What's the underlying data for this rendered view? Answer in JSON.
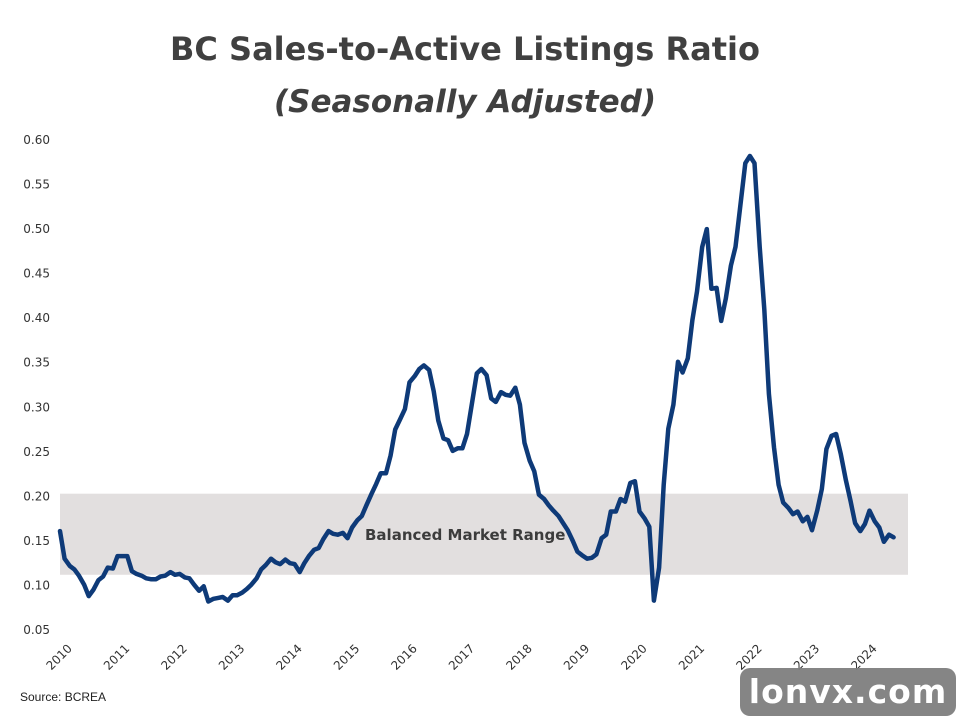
{
  "source": "Source: BCREA",
  "watermark": "lonvx.com",
  "chart_data": {
    "type": "line",
    "title": "BC Sales-to-Active Listings Ratio",
    "subtitle": "(Seasonally Adjusted)",
    "xlabel": "",
    "ylabel": "",
    "ylim": [
      0.05,
      0.6
    ],
    "yticks": [
      "0.05",
      "0.10",
      "0.15",
      "0.20",
      "0.25",
      "0.30",
      "0.35",
      "0.40",
      "0.45",
      "0.50",
      "0.55",
      "0.60"
    ],
    "xlim": [
      2010,
      2024.75
    ],
    "xticks": [
      "2010",
      "2011",
      "2012",
      "2013",
      "2014",
      "2015",
      "2016",
      "2017",
      "2018",
      "2019",
      "2020",
      "2021",
      "2022",
      "2023",
      "2024"
    ],
    "grid": false,
    "band": {
      "label": "Balanced Market Range",
      "from": 0.112,
      "to": 0.203,
      "color": "#e2dfdf"
    },
    "line_color": "#0e3a78",
    "series": [
      {
        "x": [
          2010.0,
          2010.08,
          2010.17,
          2010.25,
          2010.33,
          2010.42,
          2010.5,
          2010.58,
          2010.67,
          2010.75,
          2010.83,
          2010.92,
          2011.0,
          2011.08,
          2011.17,
          2011.25,
          2011.33,
          2011.42,
          2011.5,
          2011.58,
          2011.67,
          2011.75,
          2011.83,
          2011.92,
          2012.0,
          2012.08,
          2012.17,
          2012.25,
          2012.33,
          2012.42,
          2012.5,
          2012.58,
          2012.67,
          2012.75,
          2012.83,
          2012.92,
          2013.0,
          2013.08,
          2013.17,
          2013.25,
          2013.33,
          2013.42,
          2013.5,
          2013.58,
          2013.67,
          2013.75,
          2013.83,
          2013.92,
          2014.0,
          2014.08,
          2014.17,
          2014.25,
          2014.33,
          2014.42,
          2014.5,
          2014.58,
          2014.67,
          2014.75,
          2014.83,
          2014.92,
          2015.0,
          2015.08,
          2015.17,
          2015.25,
          2015.33,
          2015.42,
          2015.5,
          2015.58,
          2015.67,
          2015.75,
          2015.83,
          2015.92,
          2016.0,
          2016.08,
          2016.17,
          2016.25,
          2016.33,
          2016.42,
          2016.5,
          2016.58,
          2016.67,
          2016.75,
          2016.83,
          2016.92,
          2017.0,
          2017.08,
          2017.17,
          2017.25,
          2017.33,
          2017.42,
          2017.5,
          2017.58,
          2017.67,
          2017.75,
          2017.83,
          2017.92,
          2018.0,
          2018.08,
          2018.17,
          2018.25,
          2018.33,
          2018.42,
          2018.5,
          2018.58,
          2018.67,
          2018.75,
          2018.83,
          2018.92,
          2019.0,
          2019.08,
          2019.17,
          2019.25,
          2019.33,
          2019.42,
          2019.5,
          2019.58,
          2019.67,
          2019.75,
          2019.83,
          2019.92,
          2020.0,
          2020.08,
          2020.17,
          2020.25,
          2020.33,
          2020.42,
          2020.5,
          2020.58,
          2020.67,
          2020.75,
          2020.83,
          2020.92,
          2021.0,
          2021.08,
          2021.17,
          2021.25,
          2021.33,
          2021.42,
          2021.5,
          2021.58,
          2021.67,
          2021.75,
          2021.83,
          2021.92,
          2022.0,
          2022.08,
          2022.17,
          2022.25,
          2022.33,
          2022.42,
          2022.5,
          2022.58,
          2022.67,
          2022.75,
          2022.83,
          2022.92,
          2023.0,
          2023.08,
          2023.17,
          2023.25,
          2023.33,
          2023.42,
          2023.5,
          2023.58,
          2023.67,
          2023.75,
          2023.83,
          2023.92,
          2024.0,
          2024.08,
          2024.17,
          2024.25,
          2024.33,
          2024.42,
          2024.5
        ],
        "y": [
          0.161,
          0.13,
          0.122,
          0.118,
          0.111,
          0.101,
          0.088,
          0.095,
          0.106,
          0.11,
          0.12,
          0.119,
          0.133,
          0.133,
          0.133,
          0.116,
          0.113,
          0.111,
          0.108,
          0.107,
          0.107,
          0.11,
          0.111,
          0.115,
          0.112,
          0.113,
          0.109,
          0.108,
          0.101,
          0.094,
          0.099,
          0.082,
          0.085,
          0.086,
          0.087,
          0.083,
          0.089,
          0.089,
          0.092,
          0.096,
          0.101,
          0.108,
          0.118,
          0.123,
          0.13,
          0.126,
          0.124,
          0.129,
          0.125,
          0.124,
          0.115,
          0.125,
          0.133,
          0.14,
          0.142,
          0.152,
          0.161,
          0.158,
          0.157,
          0.159,
          0.153,
          0.165,
          0.173,
          0.178,
          0.19,
          0.203,
          0.214,
          0.226,
          0.226,
          0.246,
          0.275,
          0.287,
          0.298,
          0.328,
          0.335,
          0.343,
          0.347,
          0.342,
          0.318,
          0.285,
          0.265,
          0.263,
          0.251,
          0.254,
          0.254,
          0.27,
          0.306,
          0.338,
          0.343,
          0.336,
          0.31,
          0.306,
          0.317,
          0.314,
          0.313,
          0.322,
          0.303,
          0.26,
          0.24,
          0.228,
          0.202,
          0.197,
          0.19,
          0.184,
          0.178,
          0.17,
          0.162,
          0.15,
          0.138,
          0.134,
          0.13,
          0.131,
          0.135,
          0.153,
          0.157,
          0.183,
          0.183,
          0.197,
          0.194,
          0.215,
          0.217,
          0.183,
          0.175,
          0.166,
          0.083,
          0.12,
          0.213,
          0.276,
          0.303,
          0.351,
          0.339,
          0.355,
          0.398,
          0.43,
          0.48,
          0.5,
          0.433,
          0.434,
          0.397,
          0.422,
          0.459,
          0.48,
          0.524,
          0.574,
          0.582,
          0.574,
          0.48,
          0.41,
          0.315,
          0.255,
          0.213,
          0.193,
          0.187,
          0.18,
          0.183,
          0.172,
          0.177,
          0.162,
          0.184,
          0.208,
          0.253,
          0.268,
          0.27,
          0.248,
          0.218,
          0.195,
          0.17,
          0.161,
          0.169,
          0.184,
          0.172,
          0.165,
          0.149,
          0.157,
          0.154
        ]
      }
    ]
  }
}
